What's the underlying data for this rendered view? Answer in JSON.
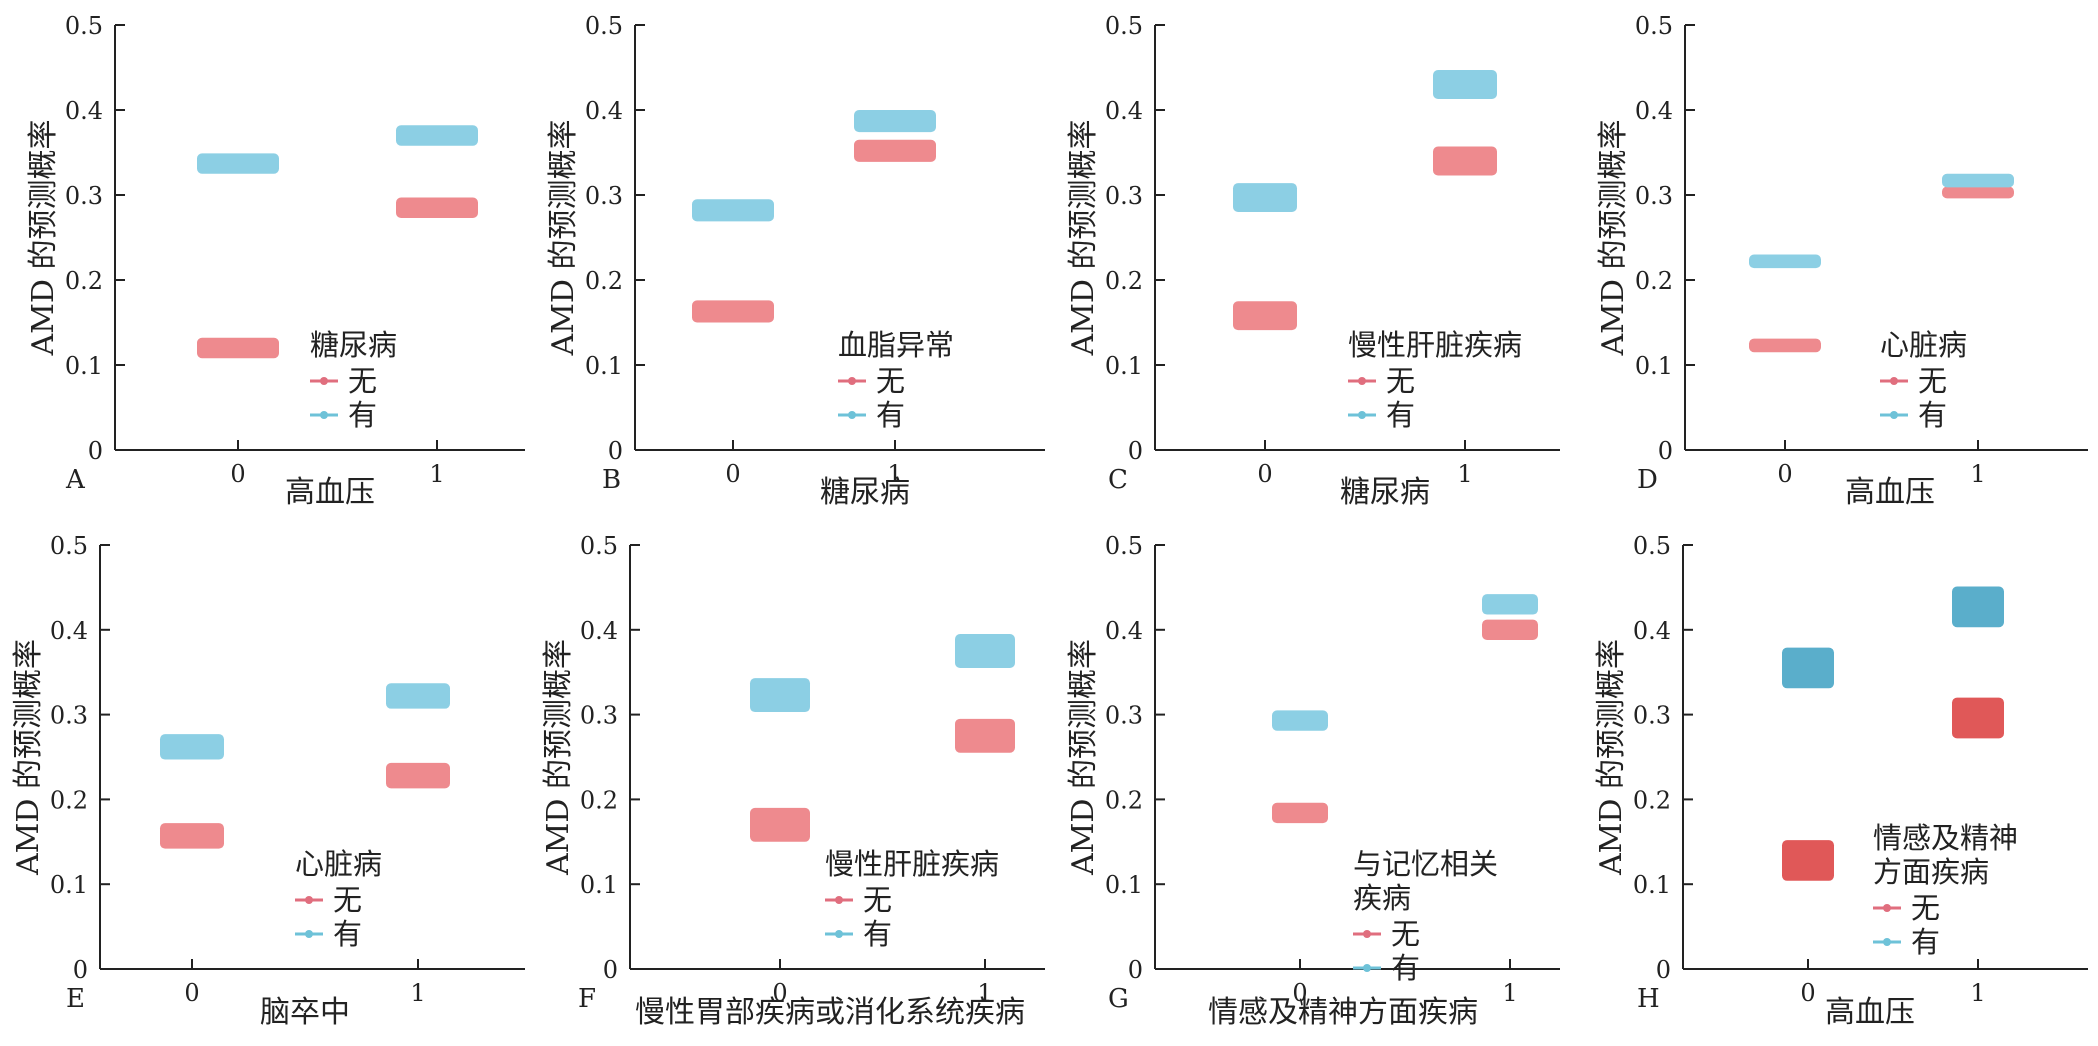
{
  "ylabel": "AMD 的预测概率",
  "yticks": [
    "0",
    "0.1",
    "0.2",
    "0.3",
    "0.4",
    "0.5"
  ],
  "colors": {
    "no_bar": "#ee8a8e",
    "yes_bar": "#8ccfe4",
    "no_marker": "#e06e7e",
    "yes_marker": "#6ec2d8",
    "dark_no_bar": "#e05858",
    "dark_yes_bar": "#5aaecb"
  },
  "chart_data": [
    {
      "panel": "A",
      "type": "scatter",
      "xlabel": "高血压",
      "ylabel": "AMD 的预测概率",
      "categories": [
        "0",
        "1"
      ],
      "ylim": [
        0,
        0.5
      ],
      "legend": {
        "title": "糖尿病",
        "items": [
          "无",
          "有"
        ],
        "placement": "lower-right"
      },
      "series": [
        {
          "name": "无",
          "values": [
            0.12,
            0.285
          ],
          "spread": [
            0.012,
            0.012
          ]
        },
        {
          "name": "有",
          "values": [
            0.337,
            0.37
          ],
          "spread": [
            0.012,
            0.012
          ]
        }
      ]
    },
    {
      "panel": "B",
      "type": "scatter",
      "xlabel": "糖尿病",
      "ylabel": "AMD 的预测概率",
      "categories": [
        "0",
        "1"
      ],
      "ylim": [
        0,
        0.5
      ],
      "legend": {
        "title": "血脂异常",
        "items": [
          "无",
          "有"
        ],
        "placement": "lower-right"
      },
      "series": [
        {
          "name": "无",
          "values": [
            0.163,
            0.352
          ],
          "spread": [
            0.013,
            0.013
          ]
        },
        {
          "name": "有",
          "values": [
            0.282,
            0.387
          ],
          "spread": [
            0.013,
            0.013
          ]
        }
      ]
    },
    {
      "panel": "C",
      "type": "scatter",
      "xlabel": "糖尿病",
      "ylabel": "AMD 的预测概率",
      "categories": [
        "0",
        "1"
      ],
      "ylim": [
        0,
        0.5
      ],
      "legend": {
        "title": "慢性肝脏疾病",
        "items": [
          "无",
          "有"
        ],
        "placement": "lower-right"
      },
      "series": [
        {
          "name": "无",
          "values": [
            0.158,
            0.34
          ],
          "spread": [
            0.017,
            0.017
          ]
        },
        {
          "name": "有",
          "values": [
            0.297,
            0.43
          ],
          "spread": [
            0.017,
            0.017
          ]
        }
      ]
    },
    {
      "panel": "D",
      "type": "scatter",
      "xlabel": "高血压",
      "ylabel": "AMD 的预测概率",
      "categories": [
        "0",
        "1"
      ],
      "ylim": [
        0,
        0.5
      ],
      "legend": {
        "title": "心脏病",
        "items": [
          "无",
          "有"
        ],
        "placement": "lower-right"
      },
      "series": [
        {
          "name": "无",
          "values": [
            0.123,
            0.303
          ],
          "spread": [
            0.008,
            0.007
          ]
        },
        {
          "name": "有",
          "values": [
            0.222,
            0.317
          ],
          "spread": [
            0.008,
            0.008
          ]
        }
      ]
    },
    {
      "panel": "E",
      "type": "scatter",
      "xlabel": "脑卒中",
      "ylabel": "AMD 的预测概率",
      "categories": [
        "0",
        "1"
      ],
      "ylim": [
        0,
        0.5
      ],
      "legend": {
        "title": "心脏病",
        "items": [
          "无",
          "有"
        ],
        "placement": "lower-right"
      },
      "series": [
        {
          "name": "无",
          "values": [
            0.157,
            0.228
          ],
          "spread": [
            0.015,
            0.015
          ]
        },
        {
          "name": "有",
          "values": [
            0.262,
            0.322
          ],
          "spread": [
            0.015,
            0.015
          ]
        }
      ]
    },
    {
      "panel": "F",
      "type": "scatter",
      "xlabel": "慢性胃部疾病或消化系统疾病",
      "ylabel": "AMD 的预测概率",
      "categories": [
        "0",
        "1"
      ],
      "ylim": [
        0,
        0.5
      ],
      "legend": {
        "title": "慢性肝脏疾病",
        "items": [
          "无",
          "有"
        ],
        "placement": "lower-right"
      },
      "series": [
        {
          "name": "无",
          "values": [
            0.17,
            0.275
          ],
          "spread": [
            0.02,
            0.02
          ]
        },
        {
          "name": "有",
          "values": [
            0.323,
            0.375
          ],
          "spread": [
            0.02,
            0.02
          ]
        }
      ]
    },
    {
      "panel": "G",
      "type": "scatter",
      "xlabel": "情感及精神方面疾病",
      "ylabel": "AMD 的预测概率",
      "categories": [
        "0",
        "1"
      ],
      "ylim": [
        0,
        0.5
      ],
      "legend": {
        "title": "与记忆相关疾病",
        "items": [
          "无",
          "有"
        ],
        "placement": "lower-right"
      },
      "series": [
        {
          "name": "无",
          "values": [
            0.184,
            0.4
          ],
          "spread": [
            0.012,
            0.012
          ]
        },
        {
          "name": "有",
          "values": [
            0.293,
            0.43
          ],
          "spread": [
            0.012,
            0.012
          ]
        }
      ]
    },
    {
      "panel": "H",
      "type": "scatter",
      "xlabel": "高血压",
      "ylabel": "AMD 的预测概率",
      "categories": [
        "0",
        "1"
      ],
      "ylim": [
        0,
        0.5
      ],
      "legend": {
        "title": "情感及精神方面疾病",
        "items": [
          "无",
          "有"
        ],
        "placement": "lower-right"
      },
      "series": [
        {
          "name": "无",
          "values": [
            0.128,
            0.296
          ],
          "spread": [
            0.024,
            0.024
          ]
        },
        {
          "name": "有",
          "values": [
            0.355,
            0.427
          ],
          "spread": [
            0.024,
            0.024
          ]
        }
      ]
    }
  ]
}
